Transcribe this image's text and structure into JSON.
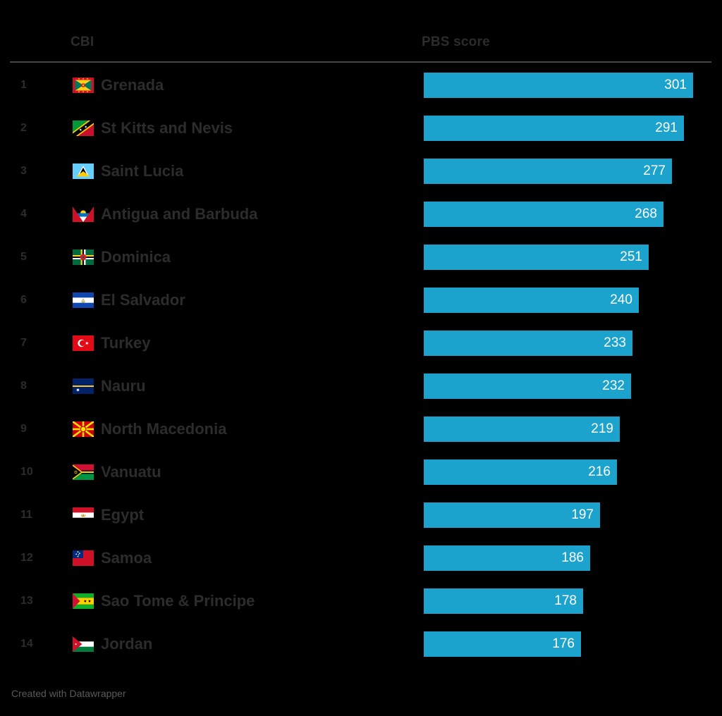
{
  "chart_data": {
    "type": "bar",
    "orientation": "horizontal",
    "title": "",
    "column_headers": {
      "cbi": "CBI",
      "score": "PBS score"
    },
    "xlim": [
      0,
      301
    ],
    "grid": false,
    "value_labels_position": "inside-end",
    "categories": [
      "Grenada",
      "St Kitts and Nevis",
      "Saint Lucia",
      "Antigua and Barbuda",
      "Dominica",
      "El Salvador",
      "Turkey",
      "Nauru",
      "North Macedonia",
      "Vanuatu",
      "Egypt",
      "Samoa",
      "Sao Tome & Principe",
      "Jordan"
    ],
    "values": [
      301,
      291,
      277,
      268,
      251,
      240,
      233,
      232,
      219,
      216,
      197,
      186,
      178,
      176
    ],
    "rows": [
      {
        "rank": "1",
        "country": "Grenada",
        "flag": "grenada-flag-icon",
        "value": 301
      },
      {
        "rank": "2",
        "country": "St Kitts and Nevis",
        "flag": "st-kitts-nevis-flag-icon",
        "value": 291
      },
      {
        "rank": "3",
        "country": "Saint Lucia",
        "flag": "saint-lucia-flag-icon",
        "value": 277
      },
      {
        "rank": "4",
        "country": "Antigua and Barbuda",
        "flag": "antigua-barbuda-flag-icon",
        "value": 268
      },
      {
        "rank": "5",
        "country": "Dominica",
        "flag": "dominica-flag-icon",
        "value": 251
      },
      {
        "rank": "6",
        "country": "El Salvador",
        "flag": "el-salvador-flag-icon",
        "value": 240
      },
      {
        "rank": "7",
        "country": "Turkey",
        "flag": "turkey-flag-icon",
        "value": 233
      },
      {
        "rank": "8",
        "country": "Nauru",
        "flag": "nauru-flag-icon",
        "value": 232
      },
      {
        "rank": "9",
        "country": "North Macedonia",
        "flag": "north-macedonia-flag-icon",
        "value": 219
      },
      {
        "rank": "10",
        "country": "Vanuatu",
        "flag": "vanuatu-flag-icon",
        "value": 216
      },
      {
        "rank": "11",
        "country": "Egypt",
        "flag": "egypt-flag-icon",
        "value": 197
      },
      {
        "rank": "12",
        "country": "Samoa",
        "flag": "samoa-flag-icon",
        "value": 186
      },
      {
        "rank": "13",
        "country": "Sao Tome & Principe",
        "flag": "sao-tome-principe-flag-icon",
        "value": 178
      },
      {
        "rank": "14",
        "country": "Jordan",
        "flag": "jordan-flag-icon",
        "value": 176
      }
    ]
  },
  "footer": {
    "credit": "Created with Datawrapper"
  },
  "colors": {
    "background": "#000000",
    "bar": "#1BA3CE",
    "value_label": "#FFFFFF",
    "text": "#2C2C2C",
    "divider": "#474747",
    "credit": "#5A5A5A"
  }
}
